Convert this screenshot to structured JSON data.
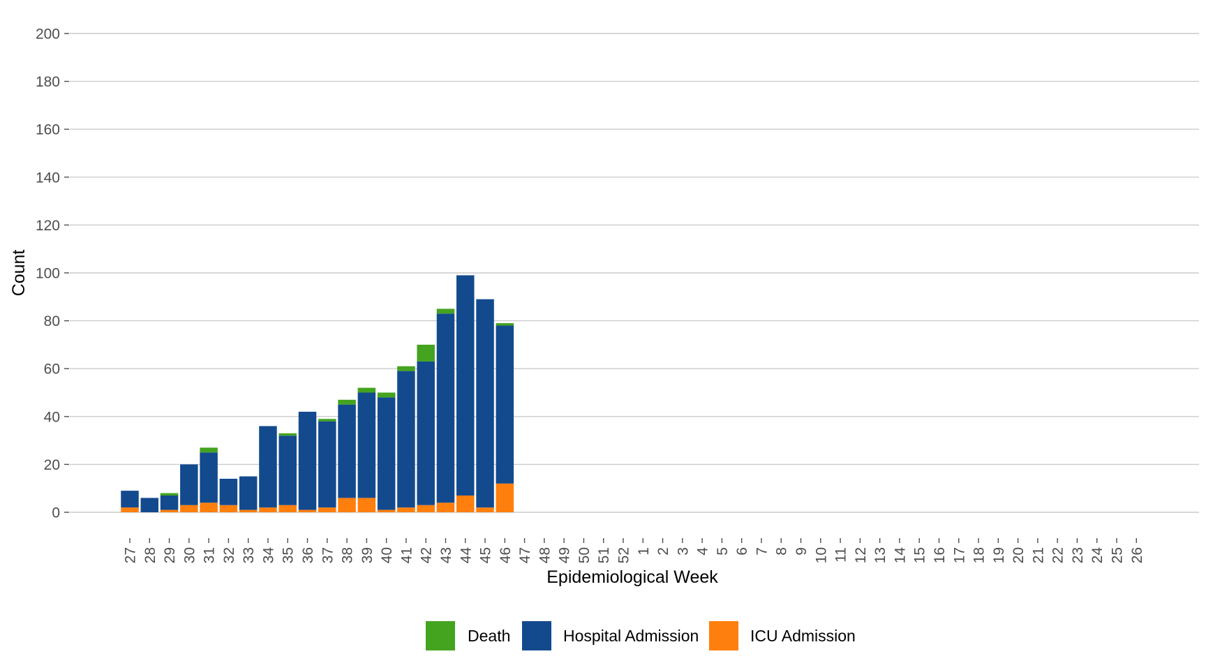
{
  "chart_data": {
    "type": "bar",
    "stacked": true,
    "xlabel": "Epidemiological Week",
    "ylabel": "Count",
    "ylim": [
      0,
      200
    ],
    "yticks": [
      0,
      20,
      40,
      60,
      80,
      100,
      120,
      140,
      160,
      180,
      200
    ],
    "grid": "horizontal major lines",
    "legend_position": "bottom",
    "categories": [
      "27",
      "28",
      "29",
      "30",
      "31",
      "32",
      "33",
      "34",
      "35",
      "36",
      "37",
      "38",
      "39",
      "40",
      "41",
      "42",
      "43",
      "44",
      "45",
      "46",
      "47",
      "48",
      "49",
      "50",
      "51",
      "52",
      "1",
      "2",
      "3",
      "4",
      "5",
      "6",
      "7",
      "8",
      "9",
      "10",
      "11",
      "12",
      "13",
      "14",
      "15",
      "16",
      "17",
      "18",
      "19",
      "20",
      "21",
      "22",
      "23",
      "24",
      "25",
      "26"
    ],
    "series": [
      {
        "name": "ICU Admission",
        "color": "#ff7f0e",
        "values": [
          2,
          0,
          1,
          3,
          4,
          3,
          1,
          2,
          3,
          1,
          2,
          6,
          6,
          1,
          2,
          3,
          4,
          7,
          2,
          12,
          0,
          0,
          0,
          0,
          0,
          0,
          0,
          0,
          0,
          0,
          0,
          0,
          0,
          0,
          0,
          0,
          0,
          0,
          0,
          0,
          0,
          0,
          0,
          0,
          0,
          0,
          0,
          0,
          0,
          0,
          0,
          0
        ]
      },
      {
        "name": "Hospital Admission",
        "color": "#134a8e",
        "values": [
          7,
          6,
          6,
          17,
          21,
          11,
          14,
          34,
          29,
          41,
          36,
          39,
          44,
          47,
          57,
          60,
          79,
          92,
          87,
          66,
          0,
          0,
          0,
          0,
          0,
          0,
          0,
          0,
          0,
          0,
          0,
          0,
          0,
          0,
          0,
          0,
          0,
          0,
          0,
          0,
          0,
          0,
          0,
          0,
          0,
          0,
          0,
          0,
          0,
          0,
          0,
          0
        ]
      },
      {
        "name": "Death",
        "color": "#44a31f",
        "values": [
          0,
          0,
          1,
          0,
          2,
          0,
          0,
          0,
          1,
          0,
          1,
          2,
          2,
          2,
          2,
          7,
          2,
          0,
          0,
          1,
          0,
          0,
          0,
          0,
          0,
          0,
          0,
          0,
          0,
          0,
          0,
          0,
          0,
          0,
          0,
          0,
          0,
          0,
          0,
          0,
          0,
          0,
          0,
          0,
          0,
          0,
          0,
          0,
          0,
          0,
          0,
          0
        ]
      }
    ],
    "legend_order": [
      "Death",
      "Hospital Admission",
      "ICU Admission"
    ]
  }
}
